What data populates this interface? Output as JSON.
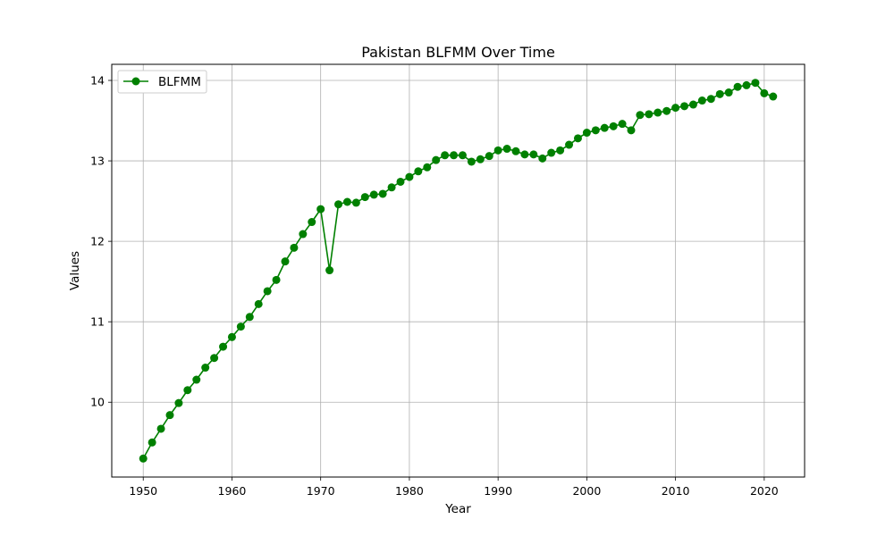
{
  "chart_data": {
    "type": "line",
    "title": "Pakistan BLFMM Over Time",
    "xlabel": "Year",
    "ylabel": "Values",
    "xlim": [
      1946.45,
      2024.55
    ],
    "ylim": [
      9.07,
      14.2
    ],
    "xticks": [
      1950,
      1960,
      1970,
      1980,
      1990,
      2000,
      2010,
      2020
    ],
    "yticks": [
      10,
      11,
      12,
      13,
      14
    ],
    "grid": true,
    "legend_position": "top-left",
    "series": [
      {
        "name": "BLFMM",
        "color": "#008000",
        "marker": "circle",
        "x": [
          1950,
          1951,
          1952,
          1953,
          1954,
          1955,
          1956,
          1957,
          1958,
          1959,
          1960,
          1961,
          1962,
          1963,
          1964,
          1965,
          1966,
          1967,
          1968,
          1969,
          1970,
          1971,
          1972,
          1973,
          1974,
          1975,
          1976,
          1977,
          1978,
          1979,
          1980,
          1981,
          1982,
          1983,
          1984,
          1985,
          1986,
          1987,
          1988,
          1989,
          1990,
          1991,
          1992,
          1993,
          1994,
          1995,
          1996,
          1997,
          1998,
          1999,
          2000,
          2001,
          2002,
          2003,
          2004,
          2005,
          2006,
          2007,
          2008,
          2009,
          2010,
          2011,
          2012,
          2013,
          2014,
          2015,
          2016,
          2017,
          2018,
          2019,
          2020,
          2021
        ],
        "y": [
          9.3,
          9.5,
          9.67,
          9.84,
          9.99,
          10.15,
          10.28,
          10.43,
          10.55,
          10.69,
          10.81,
          10.94,
          11.06,
          11.22,
          11.38,
          11.52,
          11.75,
          11.92,
          12.09,
          12.24,
          12.4,
          11.64,
          12.46,
          12.49,
          12.48,
          12.55,
          12.58,
          12.59,
          12.67,
          12.74,
          12.8,
          12.87,
          12.92,
          13.01,
          13.07,
          13.07,
          13.07,
          12.99,
          13.02,
          13.06,
          13.13,
          13.15,
          13.12,
          13.08,
          13.08,
          13.03,
          13.1,
          13.13,
          13.2,
          13.28,
          13.35,
          13.38,
          13.41,
          13.43,
          13.46,
          13.38,
          13.57,
          13.58,
          13.6,
          13.62,
          13.66,
          13.68,
          13.7,
          13.75,
          13.77,
          13.83,
          13.85,
          13.92,
          13.94,
          13.97,
          13.84,
          13.8
        ]
      }
    ]
  }
}
